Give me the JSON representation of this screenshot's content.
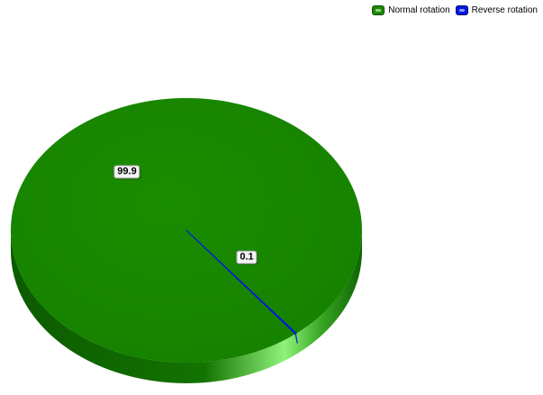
{
  "colors": {
    "normal": "#1a8a00",
    "reverse": "#0018e0"
  },
  "legend": {
    "position": "top-right",
    "items": [
      {
        "label": "Normal rotation",
        "color": "#1a8a00"
      },
      {
        "label": "Reverse rotation",
        "color": "#0018e0"
      }
    ]
  },
  "chart_data": {
    "type": "pie",
    "style": "3d",
    "series": [
      {
        "values": [
          99.9,
          0.1
        ],
        "labels": [
          "Normal rotation",
          "Reverse rotation"
        ]
      }
    ],
    "data_labels": [
      "99.9",
      "0.1"
    ],
    "legend": "top-right"
  }
}
